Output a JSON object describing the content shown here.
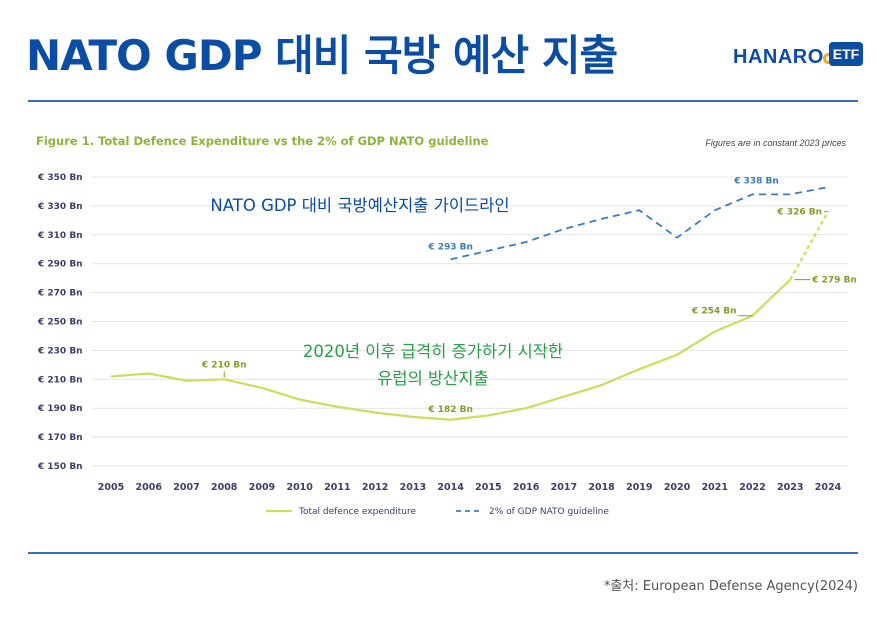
{
  "header": {
    "title": "NATO GDP 대비 국방 예산 지출",
    "logo_text": "HANARO",
    "logo_badge": "ETF"
  },
  "source": "*출처: European Defense Agency(2024)",
  "colors": {
    "title": "#0a4da2",
    "expenditure_line": "#cddc5a",
    "guideline_line": "#3a7bbf",
    "chart_title": "#8ab43a",
    "expenditure_annotation": "#27a046",
    "guideline_annotation": "#0a4da2",
    "logo_accent": "#f5a623"
  },
  "chart_data": {
    "type": "line",
    "title": "Figure 1. Total Defence Expenditure vs the 2% of GDP NATO guideline",
    "subtitle": "Figures are in constant 2023 prices",
    "x": [
      "2005",
      "2006",
      "2007",
      "2008",
      "2009",
      "2010",
      "2011",
      "2012",
      "2013",
      "2014",
      "2015",
      "2016",
      "2017",
      "2018",
      "2019",
      "2020",
      "2021",
      "2022",
      "2023",
      "2024"
    ],
    "ylim": [
      150,
      350
    ],
    "yticks": [
      150,
      170,
      190,
      210,
      230,
      250,
      270,
      290,
      310,
      330,
      350
    ],
    "ytick_labels": [
      "€ 150 Bn",
      "€ 170 Bn",
      "€ 190 Bn",
      "€ 210 Bn",
      "€ 230 Bn",
      "€ 250 Bn",
      "€ 270 Bn",
      "€ 290 Bn",
      "€ 310 Bn",
      "€ 330 Bn",
      "€ 350 Bn"
    ],
    "grid": true,
    "legend_position": "bottom",
    "series": [
      {
        "name": "Total defence expenditure",
        "style": "solid",
        "projected_from": "2023",
        "values": [
          212,
          214,
          209,
          210,
          204,
          196,
          191,
          187,
          184,
          182,
          185,
          190,
          198,
          206,
          217,
          227,
          243,
          254,
          279,
          326
        ]
      },
      {
        "name": "2% of GDP NATO guideline",
        "style": "dashed",
        "values": [
          null,
          null,
          null,
          null,
          null,
          null,
          null,
          null,
          null,
          293,
          299,
          305,
          314,
          321,
          327,
          308,
          327,
          338,
          338,
          343
        ]
      }
    ],
    "data_labels": [
      {
        "series": 0,
        "x": "2008",
        "text": "€ 210 Bn"
      },
      {
        "series": 0,
        "x": "2014",
        "text": "€ 182 Bn"
      },
      {
        "series": 0,
        "x": "2022",
        "text": "€ 254 Bn"
      },
      {
        "series": 0,
        "x": "2023",
        "text": "€ 279 Bn"
      },
      {
        "series": 0,
        "x": "2024",
        "text": "€ 326 Bn"
      },
      {
        "series": 1,
        "x": "2014",
        "text": "€ 293 Bn"
      },
      {
        "series": 1,
        "x": "2022",
        "text": "€ 338 Bn"
      }
    ],
    "annotations": [
      {
        "text_lines": [
          "NATO GDP 대비 국방예산지출 가이드라인"
        ],
        "anchor": "guideline"
      },
      {
        "text_lines": [
          "2020년 이후 급격히 증가하기 시작한",
          "유럽의 방산지출"
        ],
        "anchor": "expenditure"
      }
    ]
  }
}
